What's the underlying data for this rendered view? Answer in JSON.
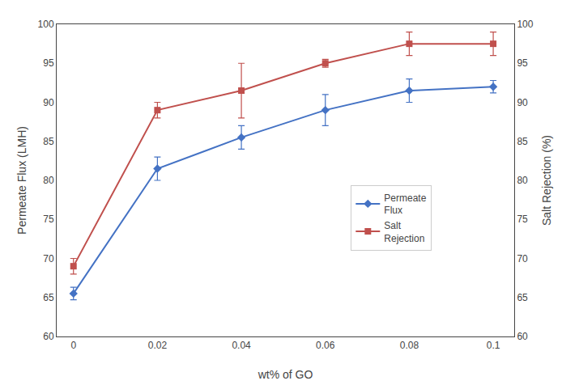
{
  "chart_data": {
    "type": "line",
    "x": [
      0,
      0.02,
      0.04,
      0.06,
      0.08,
      0.1
    ],
    "xlabel": "wt% of GO",
    "ylabel": "Permeate Flux (LMH)",
    "y2label": "Salt Rejection (%)",
    "xlim": [
      -0.004,
      0.105
    ],
    "xticks": [
      0,
      0.02,
      0.04,
      0.06,
      0.08,
      0.1
    ],
    "ylim": [
      60,
      100
    ],
    "yticks": [
      60,
      65,
      70,
      75,
      80,
      85,
      90,
      95,
      100
    ],
    "y2lim": [
      60,
      100
    ],
    "y2ticks": [
      60,
      65,
      70,
      75,
      80,
      85,
      90,
      95,
      100
    ],
    "grid": false,
    "legend": "right",
    "series": [
      {
        "name": "Permeate\nFlux",
        "color": "#4472C4",
        "marker": "diamond",
        "values": [
          65.5,
          81.5,
          85.5,
          89.0,
          91.5,
          92.0
        ],
        "yerr": [
          0.8,
          1.5,
          1.5,
          2.0,
          1.5,
          0.8
        ]
      },
      {
        "name": "Salt\nRejection",
        "color": "#C0504D",
        "marker": "square",
        "axis": "y2",
        "values": [
          69.0,
          89.0,
          91.5,
          95.0,
          97.5,
          97.5
        ],
        "yerr": [
          1.0,
          1.0,
          3.5,
          0.5,
          1.5,
          1.5
        ]
      }
    ]
  }
}
